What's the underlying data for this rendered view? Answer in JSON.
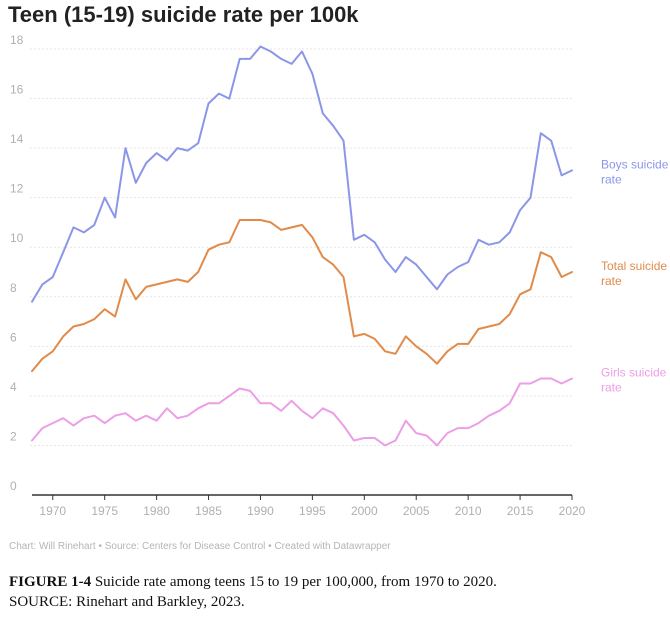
{
  "chart_data": {
    "type": "line",
    "title": "Teen (15-19) suicide rate per 100k",
    "xlabel": "",
    "ylabel": "",
    "xlim": [
      1968,
      2020
    ],
    "ylim": [
      0,
      18
    ],
    "x_ticks": [
      "1970",
      "1975",
      "1980",
      "1985",
      "1990",
      "1995",
      "2000",
      "2005",
      "2010",
      "2015",
      "2020"
    ],
    "y_ticks": [
      "0",
      "2",
      "4",
      "6",
      "8",
      "10",
      "12",
      "14",
      "16",
      "18"
    ],
    "grid": true,
    "x": [
      1968,
      1969,
      1970,
      1971,
      1972,
      1973,
      1974,
      1975,
      1976,
      1977,
      1978,
      1979,
      1980,
      1981,
      1982,
      1983,
      1984,
      1985,
      1986,
      1987,
      1988,
      1989,
      1990,
      1991,
      1992,
      1993,
      1994,
      1995,
      1996,
      1997,
      1998,
      1999,
      2000,
      2001,
      2002,
      2003,
      2004,
      2005,
      2006,
      2007,
      2008,
      2009,
      2010,
      2011,
      2012,
      2013,
      2014,
      2015,
      2016,
      2017,
      2018,
      2019,
      2020
    ],
    "series": [
      {
        "name": "Boys suicide rate",
        "name_lines": [
          "Boys suicide",
          "rate"
        ],
        "color": "#8c96e8",
        "values": [
          7.8,
          8.5,
          8.8,
          9.8,
          10.8,
          10.6,
          10.9,
          12.0,
          11.2,
          14.0,
          12.6,
          13.4,
          13.8,
          13.5,
          14.0,
          13.9,
          14.2,
          15.8,
          16.2,
          16.0,
          17.6,
          17.6,
          18.1,
          17.9,
          17.6,
          17.4,
          17.9,
          17.0,
          15.4,
          14.9,
          14.3,
          10.3,
          10.5,
          10.2,
          9.5,
          9.0,
          9.6,
          9.3,
          8.8,
          8.3,
          8.9,
          9.2,
          9.4,
          10.3,
          10.1,
          10.2,
          10.6,
          11.5,
          12.0,
          14.6,
          14.3,
          12.9,
          13.1
        ]
      },
      {
        "name": "Total suicide rate",
        "name_lines": [
          "Total suicide",
          "rate"
        ],
        "color": "#e08b4a",
        "values": [
          5.0,
          5.5,
          5.8,
          6.4,
          6.8,
          6.9,
          7.1,
          7.5,
          7.2,
          8.7,
          7.9,
          8.4,
          8.5,
          8.6,
          8.7,
          8.6,
          9.0,
          9.9,
          10.1,
          10.2,
          11.1,
          11.1,
          11.1,
          11.0,
          10.7,
          10.8,
          10.9,
          10.4,
          9.6,
          9.3,
          8.8,
          6.4,
          6.5,
          6.3,
          5.8,
          5.7,
          6.4,
          6.0,
          5.7,
          5.3,
          5.8,
          6.1,
          6.1,
          6.7,
          6.8,
          6.9,
          7.3,
          8.1,
          8.3,
          9.8,
          9.6,
          8.8,
          9.0
        ]
      },
      {
        "name": "Girls suicide rate",
        "name_lines": [
          "Girls suicide",
          "rate"
        ],
        "color": "#ec9ee6",
        "values": [
          2.2,
          2.7,
          2.9,
          3.1,
          2.8,
          3.1,
          3.2,
          2.9,
          3.2,
          3.3,
          3.0,
          3.2,
          3.0,
          3.5,
          3.1,
          3.2,
          3.5,
          3.7,
          3.7,
          4.0,
          4.3,
          4.2,
          3.7,
          3.7,
          3.4,
          3.8,
          3.4,
          3.1,
          3.5,
          3.3,
          2.8,
          2.2,
          2.3,
          2.3,
          2.0,
          2.2,
          3.0,
          2.5,
          2.4,
          2.0,
          2.5,
          2.7,
          2.7,
          2.9,
          3.2,
          3.4,
          3.7,
          4.5,
          4.5,
          4.7,
          4.7,
          4.5,
          4.7
        ]
      }
    ]
  },
  "credits": "Chart: Will Rinehart • Source: Centers for Disease Control • Created with Datawrapper",
  "caption": {
    "label": "FIGURE 1-4",
    "text": "Suicide rate among teens 15 to 19 per 100,000, from 1970 to 2020.",
    "source": "SOURCE: Rinehart and Barkley, 2023."
  }
}
